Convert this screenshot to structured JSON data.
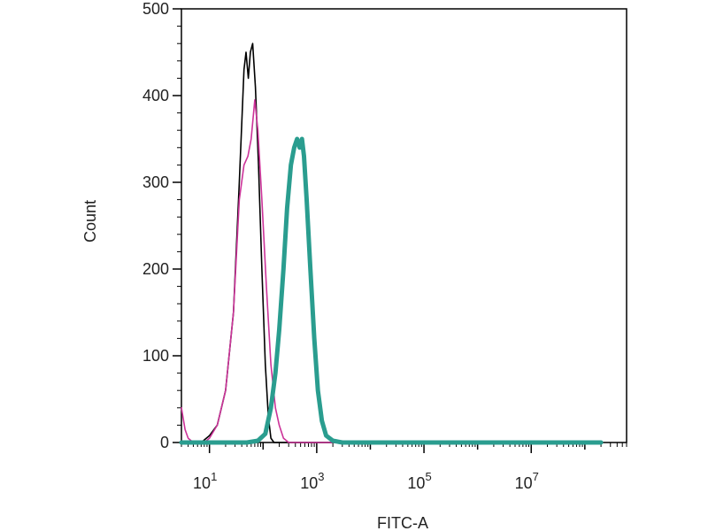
{
  "chart_data": {
    "type": "line",
    "title": "",
    "xlabel": "FITC-A",
    "ylabel": "Count",
    "x_scale": "log",
    "xlim": [
      3,
      600000000
    ],
    "ylim": [
      0,
      500
    ],
    "grid": false,
    "legend": "none",
    "x_ticks": [
      {
        "value": 10,
        "base": "10",
        "exp": "1"
      },
      {
        "value": 1000,
        "base": "10",
        "exp": "3"
      },
      {
        "value": 100000,
        "base": "10",
        "exp": "5"
      },
      {
        "value": 10000000,
        "base": "10",
        "exp": "7"
      }
    ],
    "y_ticks": [
      {
        "value": 0,
        "label": "0"
      },
      {
        "value": 100,
        "label": "100"
      },
      {
        "value": 200,
        "label": "200"
      },
      {
        "value": 300,
        "label": "300"
      },
      {
        "value": 400,
        "label": "400"
      },
      {
        "value": 500,
        "label": "500"
      }
    ],
    "series": [
      {
        "color": "#000000",
        "stroke": "thin",
        "points": [
          [
            3,
            0
          ],
          [
            7,
            0
          ],
          [
            10,
            8
          ],
          [
            14,
            20
          ],
          [
            20,
            60
          ],
          [
            28,
            150
          ],
          [
            36,
            300
          ],
          [
            44,
            430
          ],
          [
            48,
            450
          ],
          [
            53,
            420
          ],
          [
            58,
            450
          ],
          [
            64,
            460
          ],
          [
            72,
            410
          ],
          [
            82,
            320
          ],
          [
            95,
            200
          ],
          [
            110,
            90
          ],
          [
            125,
            30
          ],
          [
            140,
            5
          ],
          [
            160,
            0
          ],
          [
            200000000,
            0
          ]
        ]
      },
      {
        "color": "#cc3399",
        "stroke": "thin",
        "points": [
          [
            3,
            40
          ],
          [
            3.5,
            15
          ],
          [
            4,
            5
          ],
          [
            5,
            0
          ],
          [
            8,
            0
          ],
          [
            10,
            5
          ],
          [
            14,
            20
          ],
          [
            20,
            60
          ],
          [
            28,
            150
          ],
          [
            36,
            280
          ],
          [
            44,
            320
          ],
          [
            52,
            330
          ],
          [
            60,
            350
          ],
          [
            70,
            395
          ],
          [
            80,
            360
          ],
          [
            95,
            280
          ],
          [
            115,
            180
          ],
          [
            140,
            90
          ],
          [
            170,
            40
          ],
          [
            200,
            20
          ],
          [
            240,
            5
          ],
          [
            300,
            0
          ],
          [
            200000000,
            0
          ]
        ]
      },
      {
        "color": "#2a9d8f",
        "stroke": "thick",
        "points": [
          [
            3,
            0
          ],
          [
            50,
            0
          ],
          [
            80,
            2
          ],
          [
            110,
            10
          ],
          [
            140,
            40
          ],
          [
            170,
            80
          ],
          [
            200,
            130
          ],
          [
            240,
            200
          ],
          [
            280,
            270
          ],
          [
            330,
            320
          ],
          [
            380,
            340
          ],
          [
            430,
            350
          ],
          [
            480,
            340
          ],
          [
            530,
            350
          ],
          [
            580,
            330
          ],
          [
            650,
            280
          ],
          [
            760,
            200
          ],
          [
            900,
            120
          ],
          [
            1050,
            60
          ],
          [
            1250,
            25
          ],
          [
            1500,
            8
          ],
          [
            2000,
            2
          ],
          [
            3000,
            0
          ],
          [
            200000000,
            0
          ]
        ]
      }
    ]
  }
}
